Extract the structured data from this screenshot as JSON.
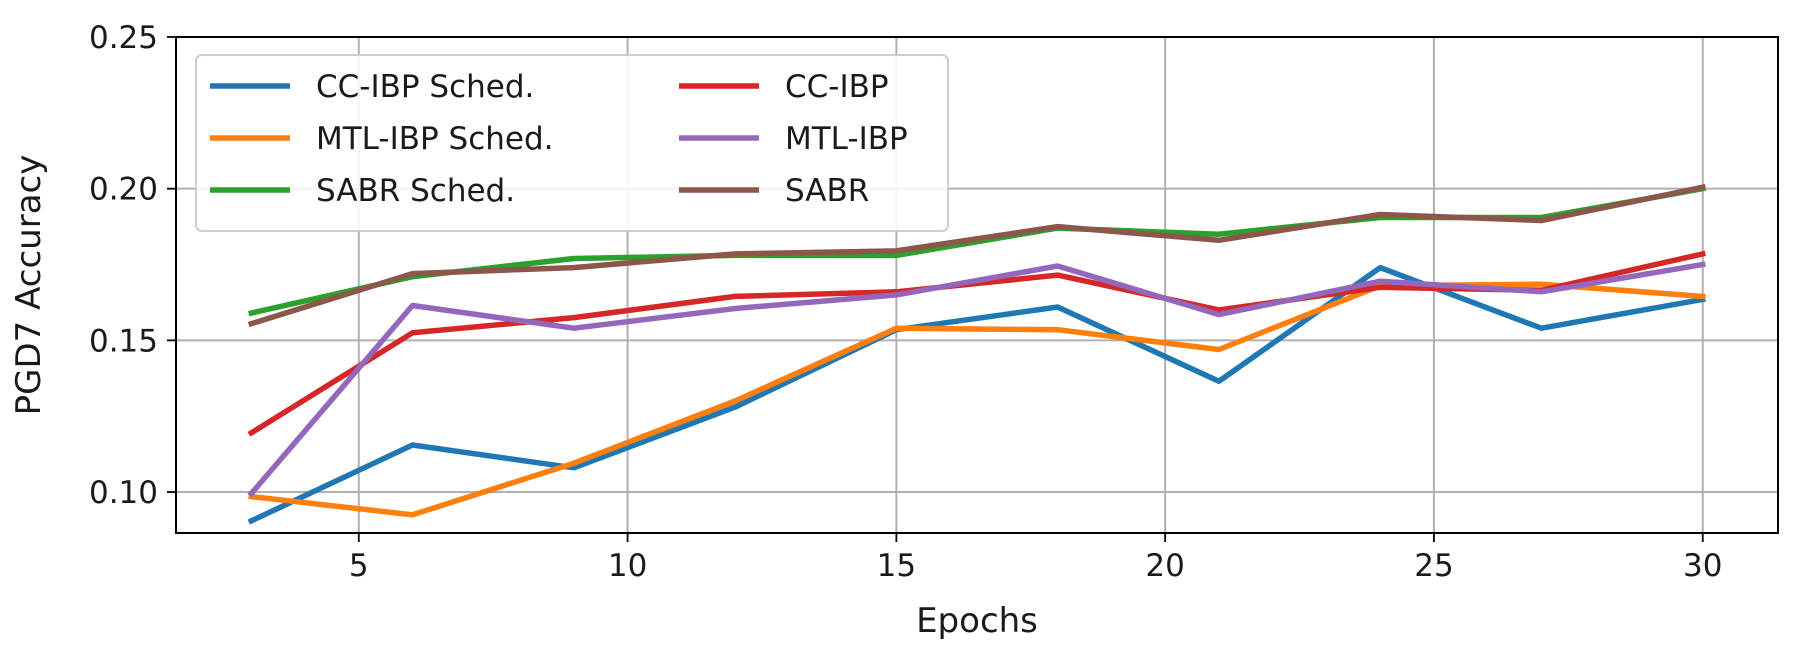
{
  "chart_data": {
    "type": "line",
    "title": "",
    "xlabel": "Epochs",
    "ylabel": "PGD7 Accuracy",
    "xlim": [
      1.6,
      31.4
    ],
    "ylim": [
      0.0865,
      0.25
    ],
    "xticks": [
      5,
      10,
      15,
      20,
      25,
      30
    ],
    "yticks": [
      0.1,
      0.15,
      0.2,
      0.25
    ],
    "xtick_labels": [
      "5",
      "10",
      "15",
      "20",
      "25",
      "30"
    ],
    "ytick_labels": [
      "0.10",
      "0.15",
      "0.20",
      "0.25"
    ],
    "grid": true,
    "legend": {
      "position": "top-left",
      "columns": 2
    },
    "x": [
      3,
      6,
      9,
      12,
      15,
      18,
      21,
      24,
      27,
      30
    ],
    "series": [
      {
        "name": "CC-IBP Sched.",
        "color": "#1f77b4",
        "values": [
          0.0905,
          0.1155,
          0.108,
          0.128,
          0.1535,
          0.161,
          0.1365,
          0.174,
          0.154,
          0.1635
        ]
      },
      {
        "name": "MTL-IBP Sched.",
        "color": "#ff7f0e",
        "values": [
          0.0985,
          0.0925,
          0.1095,
          0.13,
          0.154,
          0.1535,
          0.147,
          0.168,
          0.1685,
          0.1645
        ]
      },
      {
        "name": "SABR Sched.",
        "color": "#2ca02c",
        "values": [
          0.159,
          0.171,
          0.177,
          0.178,
          0.178,
          0.187,
          0.185,
          0.1905,
          0.1905,
          0.2
        ]
      },
      {
        "name": "CC-IBP",
        "color": "#d62728",
        "values": [
          0.1195,
          0.1525,
          0.1575,
          0.1645,
          0.166,
          0.1715,
          0.16,
          0.1675,
          0.1665,
          0.1785
        ]
      },
      {
        "name": "MTL-IBP",
        "color": "#9467bd",
        "values": [
          0.0995,
          0.1615,
          0.154,
          0.1605,
          0.165,
          0.1745,
          0.1585,
          0.1695,
          0.166,
          0.175
        ]
      },
      {
        "name": "SABR",
        "color": "#8c564b",
        "values": [
          0.1555,
          0.172,
          0.174,
          0.1785,
          0.1795,
          0.1875,
          0.183,
          0.1915,
          0.1895,
          0.2005
        ]
      }
    ]
  }
}
